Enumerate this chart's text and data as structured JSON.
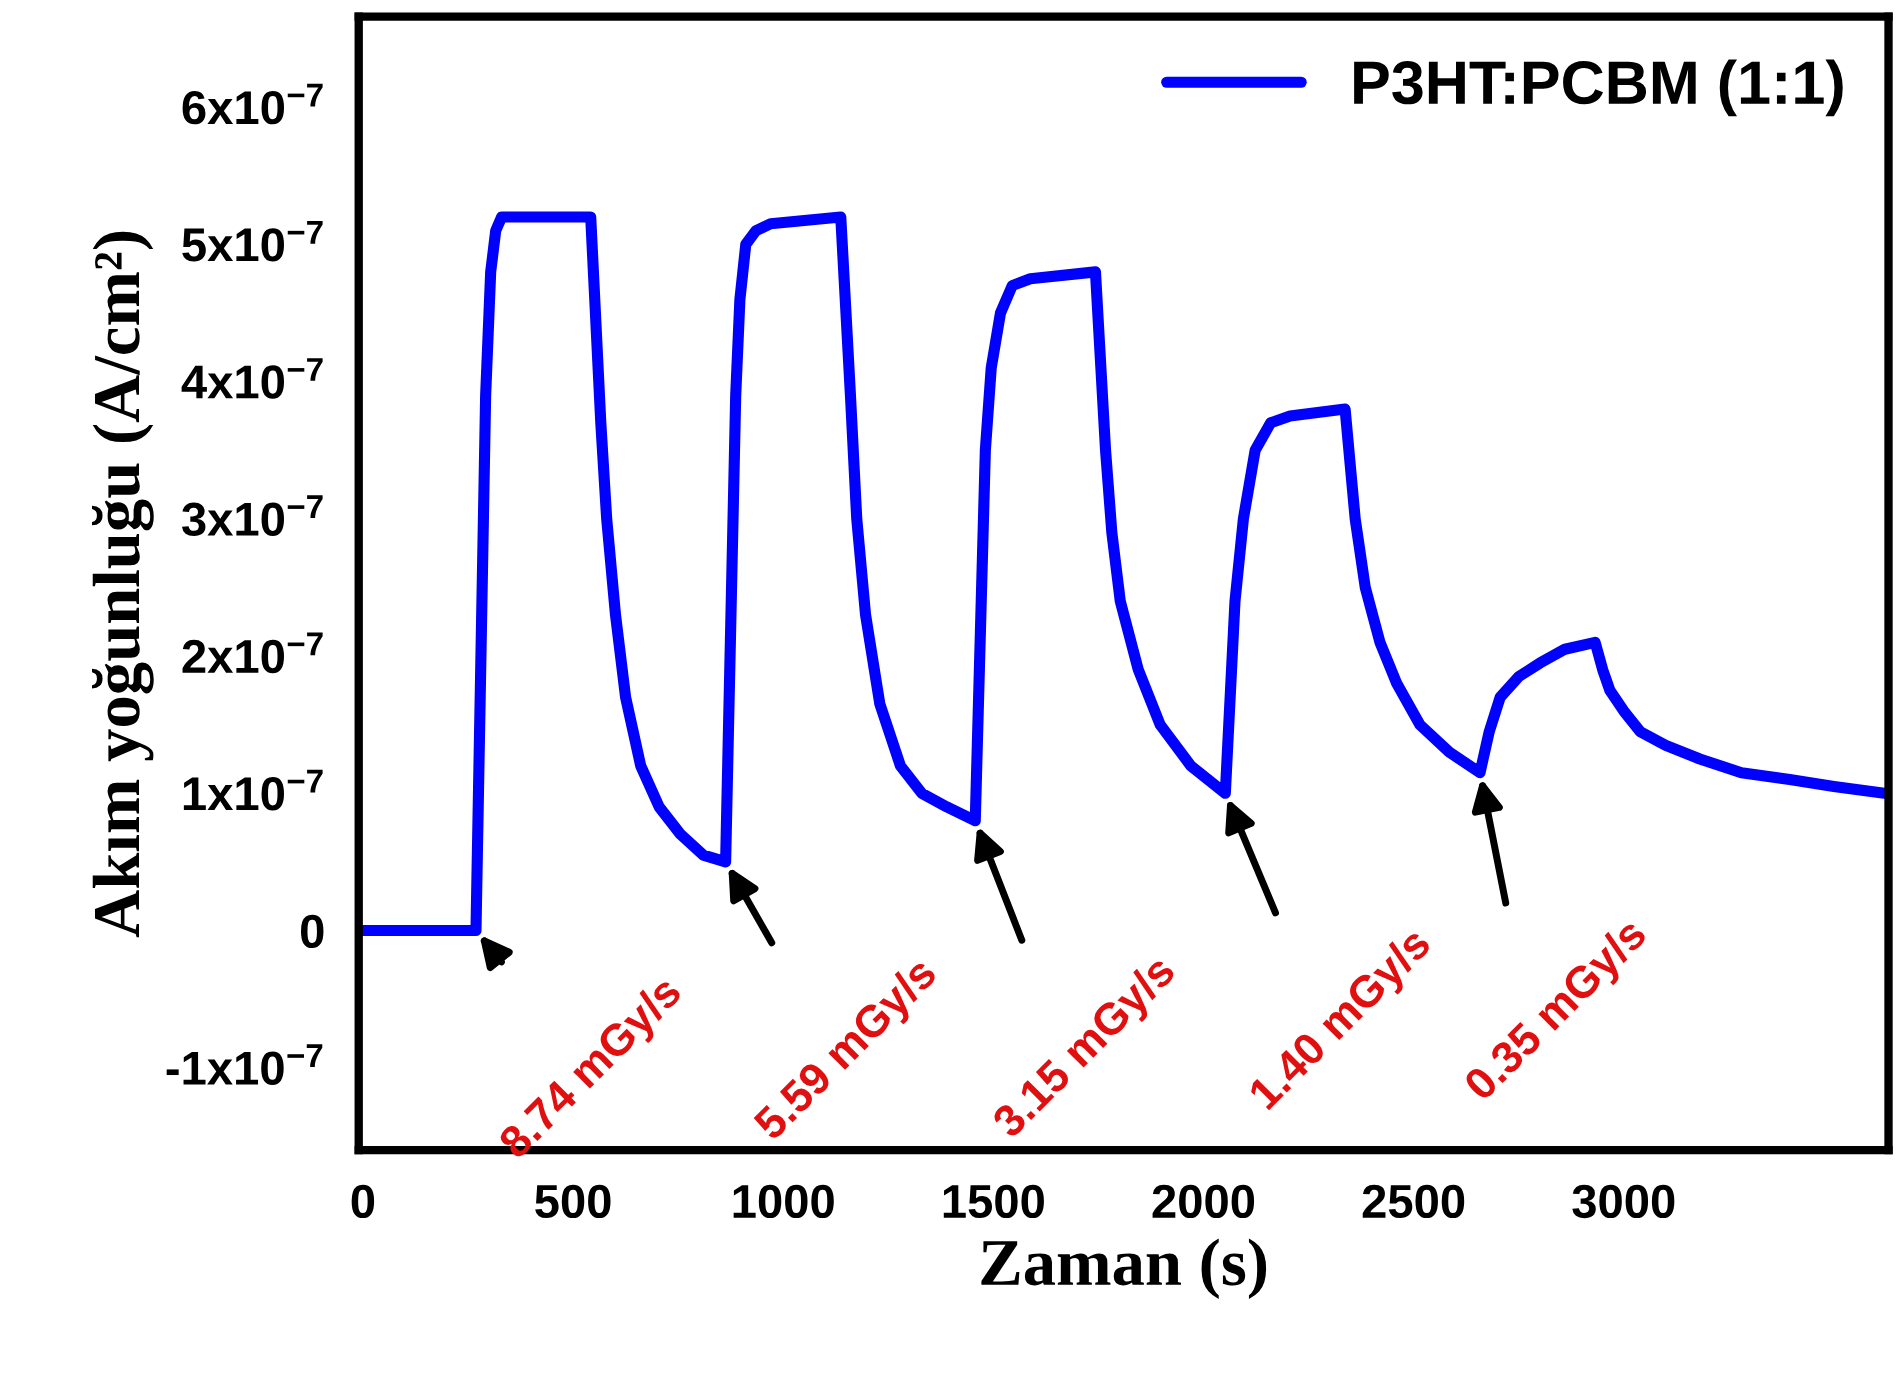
{
  "chart_data": {
    "type": "line",
    "xlabel": "Zaman (s)",
    "ylabel": "Akım yoğunluğu (A/cm²)",
    "xlim": [
      -10,
      3630
    ],
    "ylim": [
      -1.6e-07,
      6.66e-07
    ],
    "xticks": [
      0,
      500,
      1000,
      1500,
      2000,
      2500,
      3000
    ],
    "yticks": [
      {
        "value": -1e-07,
        "label": "-1x10$^{−7}$"
      },
      {
        "value": 0,
        "label": "0"
      },
      {
        "value": 1e-07,
        "label": "1x10$^{−7}$"
      },
      {
        "value": 2e-07,
        "label": "2x10$^{−7}$"
      },
      {
        "value": 3e-07,
        "label": "3x10$^{−7}$"
      },
      {
        "value": 4e-07,
        "label": "4x10$^{−7}$"
      },
      {
        "value": 5e-07,
        "label": "5x10$^{−7}$"
      },
      {
        "value": 6e-07,
        "label": "6x10$^{−7}$"
      }
    ],
    "grid": false,
    "legend": "top right",
    "marker": "none",
    "line_style": "solid",
    "series": [
      {
        "name": "P3HT:PCBM (1:1)",
        "color": "#0000ff",
        "x": [
          0,
          269,
          292,
          304,
          316,
          330,
          364,
          542,
          566,
          580,
          601,
          625,
          661,
          705,
          756,
          810,
          863,
          887,
          897,
          911,
          935,
          970,
          1137,
          1160,
          1175,
          1196,
          1230,
          1279,
          1330,
          1390,
          1457,
          1481,
          1495,
          1517,
          1545,
          1588,
          1743,
          1767,
          1782,
          1802,
          1845,
          1897,
          1970,
          2052,
          2075,
          2095,
          2123,
          2160,
          2206,
          2337,
          2361,
          2385,
          2420,
          2460,
          2515,
          2585,
          2658,
          2680,
          2706,
          2750,
          2801,
          2860,
          2932,
          2950,
          2967,
          3000,
          3039,
          3100,
          3181,
          3280,
          3395,
          3500,
          3620
        ],
        "values": [
          0,
          0,
          3.9e-07,
          4.8e-07,
          5.1e-07,
          5.2e-07,
          5.2e-07,
          5.2e-07,
          3.7e-07,
          3e-07,
          2.3e-07,
          1.7e-07,
          1.2e-07,
          9e-08,
          7e-08,
          5.5e-08,
          5e-08,
          3.9e-07,
          4.6e-07,
          5e-07,
          5.1e-07,
          5.15e-07,
          5.2e-07,
          3.9e-07,
          3e-07,
          2.3e-07,
          1.65e-07,
          1.2e-07,
          1e-07,
          9e-08,
          8e-08,
          3.5e-07,
          4.1e-07,
          4.5e-07,
          4.7e-07,
          4.75e-07,
          4.8e-07,
          3.5e-07,
          2.9e-07,
          2.4e-07,
          1.9e-07,
          1.5e-07,
          1.2e-07,
          1e-07,
          2.4e-07,
          3e-07,
          3.5e-07,
          3.7e-07,
          3.75e-07,
          3.8e-07,
          3e-07,
          2.5e-07,
          2.1e-07,
          1.8e-07,
          1.5e-07,
          1.3e-07,
          1.15e-07,
          1.45e-07,
          1.7e-07,
          1.85e-07,
          1.95e-07,
          2.05e-07,
          2.1e-07,
          1.9e-07,
          1.75e-07,
          1.6e-07,
          1.45e-07,
          1.35e-07,
          1.25e-07,
          1.15e-07,
          1.1e-07,
          1.05e-07,
          1e-07
        ]
      }
    ],
    "annotations": [
      {
        "text": "8.74 mGy/s",
        "x": 269,
        "y": 0
      },
      {
        "text": "5.59 mGy/s",
        "x": 863,
        "y": 5e-08
      },
      {
        "text": "3.15 mGy/s",
        "x": 1457,
        "y": 8e-08
      },
      {
        "text": "1.40 mGy/s",
        "x": 2052,
        "y": 1e-07
      },
      {
        "text": "0.35 mGy/s",
        "x": 2658,
        "y": 1.15e-07
      }
    ]
  }
}
